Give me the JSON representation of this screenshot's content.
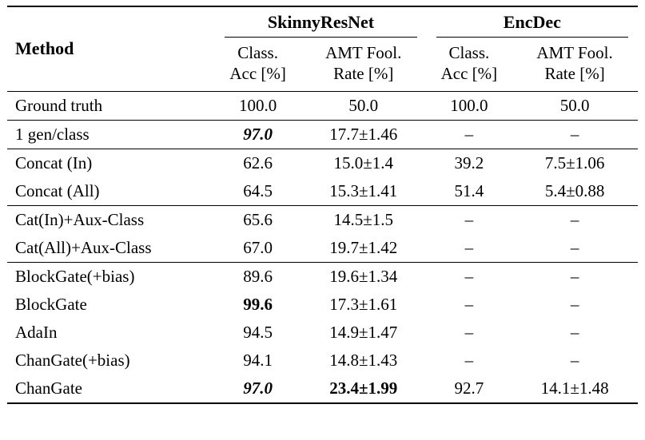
{
  "table": {
    "headers": {
      "method": "Method",
      "groups": [
        {
          "label": "SkinnyResNet"
        },
        {
          "label": "EncDec"
        }
      ],
      "subcols": [
        {
          "line1": "Class.",
          "line2": "Acc [%]"
        },
        {
          "line1": "AMT Fool.",
          "line2": "Rate [%]"
        },
        {
          "line1": "Class.",
          "line2": "Acc [%]"
        },
        {
          "line1": "AMT Fool.",
          "line2": "Rate [%]"
        }
      ]
    },
    "row_groups": [
      {
        "rows": [
          {
            "method": "Ground truth",
            "values": [
              "100.0",
              "50.0",
              "100.0",
              "50.0"
            ]
          }
        ]
      },
      {
        "rows": [
          {
            "method": "1 gen/class",
            "values": [
              "97.0",
              "17.7±1.46",
              "–",
              "–"
            ]
          }
        ]
      },
      {
        "rows": [
          {
            "method": "Concat (In)",
            "values": [
              "62.6",
              "15.0±1.4",
              "39.2",
              "7.5±1.06"
            ]
          },
          {
            "method": "Concat (All)",
            "values": [
              "64.5",
              "15.3±1.41",
              "51.4",
              "5.4±0.88"
            ]
          }
        ]
      },
      {
        "rows": [
          {
            "method": "Cat(In)+Aux-Class",
            "values": [
              "65.6",
              "14.5±1.5",
              "–",
              "–"
            ]
          },
          {
            "method": "Cat(All)+Aux-Class",
            "values": [
              "67.0",
              "19.7±1.42",
              "–",
              "–"
            ]
          }
        ]
      },
      {
        "rows": [
          {
            "method": "BlockGate(+bias)",
            "values": [
              "89.6",
              "19.6±1.34",
              "–",
              "–"
            ]
          },
          {
            "method": "BlockGate",
            "values": [
              "99.6",
              "17.3±1.61",
              "–",
              "–"
            ]
          },
          {
            "method": "AdaIn",
            "values": [
              "94.5",
              "14.9±1.47",
              "–",
              "–"
            ]
          },
          {
            "method": "ChanGate(+bias)",
            "values": [
              "94.1",
              "14.8±1.43",
              "–",
              "–"
            ]
          },
          {
            "method": "ChanGate",
            "values": [
              "97.0",
              "23.4±1.99",
              "92.7",
              "14.1±1.48"
            ]
          }
        ]
      }
    ]
  }
}
